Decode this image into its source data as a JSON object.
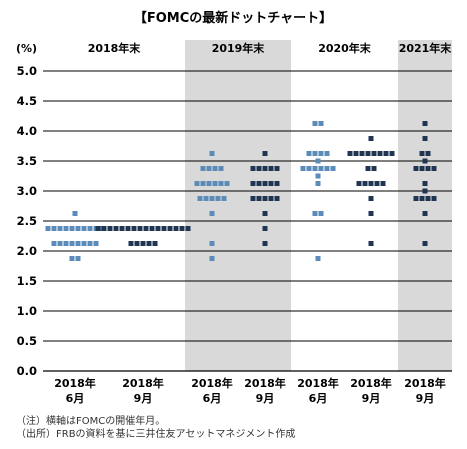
{
  "chart_data": {
    "type": "scatter",
    "title": "【FOMCの最新ドットチャート】",
    "ylabel": "(%)",
    "ylim": [
      0,
      5.0
    ],
    "yticks": [
      "0.0",
      "0.5",
      "1.0",
      "1.5",
      "2.0",
      "2.5",
      "3.0",
      "3.5",
      "4.0",
      "4.5",
      "5.0"
    ],
    "groups": [
      {
        "label": "2018年末",
        "shaded": false
      },
      {
        "label": "2019年末",
        "shaded": true
      },
      {
        "label": "2020年末",
        "shaded": false
      },
      {
        "label": "2021年末",
        "shaded": true
      }
    ],
    "categories": [
      {
        "year": "2018年",
        "month": "6月"
      },
      {
        "year": "2018年",
        "month": "9月"
      },
      {
        "year": "2018年",
        "month": "6月"
      },
      {
        "year": "2018年",
        "month": "9月"
      },
      {
        "year": "2018年",
        "month": "6月"
      },
      {
        "year": "2018年",
        "month": "9月"
      },
      {
        "year": "2018年",
        "month": "9月"
      }
    ],
    "series": [
      {
        "name": "6月",
        "color": "#5b8bb8"
      },
      {
        "name": "9月",
        "color": "#1f3552"
      }
    ],
    "columns": [
      {
        "group": 0,
        "series": 0,
        "dots": [
          [
            2.625,
            1
          ],
          [
            2.375,
            10
          ],
          [
            2.125,
            8
          ],
          [
            1.875,
            2
          ]
        ]
      },
      {
        "group": 0,
        "series": 1,
        "dots": [
          [
            2.375,
            16
          ],
          [
            2.125,
            5
          ]
        ]
      },
      {
        "group": 1,
        "series": 0,
        "dots": [
          [
            3.625,
            1
          ],
          [
            3.375,
            4
          ],
          [
            3.125,
            6
          ],
          [
            2.875,
            5
          ],
          [
            2.625,
            1
          ],
          [
            2.125,
            1
          ],
          [
            1.875,
            1
          ]
        ]
      },
      {
        "group": 1,
        "series": 1,
        "dots": [
          [
            3.625,
            1
          ],
          [
            3.375,
            5
          ],
          [
            3.125,
            5
          ],
          [
            2.875,
            5
          ],
          [
            2.625,
            1
          ],
          [
            2.375,
            1
          ],
          [
            2.125,
            1
          ]
        ]
      },
      {
        "group": 2,
        "series": 0,
        "dots": [
          [
            4.125,
            2
          ],
          [
            3.625,
            4
          ],
          [
            3.5,
            1
          ],
          [
            3.375,
            6
          ],
          [
            3.25,
            1
          ],
          [
            3.125,
            1
          ],
          [
            2.625,
            2
          ],
          [
            1.875,
            1
          ]
        ]
      },
      {
        "group": 2,
        "series": 1,
        "dots": [
          [
            3.875,
            1
          ],
          [
            3.625,
            8
          ],
          [
            3.375,
            2
          ],
          [
            3.125,
            5
          ],
          [
            2.875,
            1
          ],
          [
            2.625,
            1
          ],
          [
            2.125,
            1
          ]
        ]
      },
      {
        "group": 3,
        "series": 1,
        "dots": [
          [
            4.125,
            1
          ],
          [
            3.875,
            1
          ],
          [
            3.625,
            2
          ],
          [
            3.5,
            1
          ],
          [
            3.375,
            4
          ],
          [
            3.125,
            1
          ],
          [
            3.0,
            1
          ],
          [
            2.875,
            4
          ],
          [
            2.625,
            1
          ],
          [
            2.125,
            1
          ]
        ]
      }
    ]
  },
  "notes": [
    "（注）横軸はFOMCの開催年月。",
    "（出所）FRBの資料を基に三井住友アセットマネジメント作成"
  ]
}
